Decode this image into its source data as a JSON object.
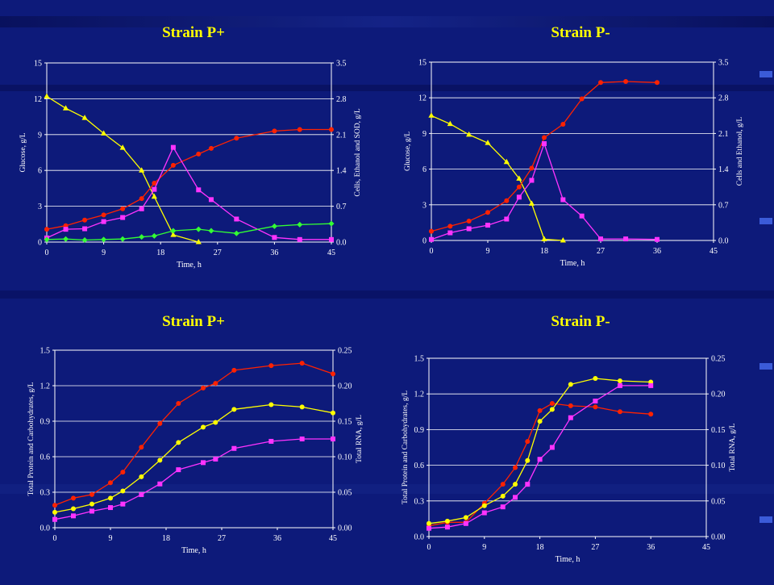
{
  "colors": {
    "background": "#0d1a7a",
    "title": "#ffff00",
    "axis": "#ffffff",
    "red": "#ff2200",
    "magenta": "#ff33ff",
    "yellow": "#ffff00",
    "green": "#33ff33"
  },
  "chart_data": [
    {
      "type": "line",
      "title": "Strain P+",
      "xlabel": "Time, h",
      "ylabel": "Glucose, g/L",
      "y2label": "Cells, Ethanol and SOD, g/L",
      "xlim": [
        0,
        45
      ],
      "ylim": [
        0,
        15
      ],
      "y2lim": [
        0,
        3.5
      ],
      "xticks": [
        "0",
        "9",
        "18",
        "27",
        "36",
        "45"
      ],
      "yticks": [
        "0",
        "3",
        "6",
        "9",
        "12",
        "15"
      ],
      "y2ticks": [
        "0.0",
        "0.7",
        "1.4",
        "2.1",
        "2.8",
        "3.5"
      ],
      "grid": true,
      "series": [
        {
          "axis": "y",
          "color": "#ffff00",
          "marker": "triangle",
          "x": [
            0,
            3,
            6,
            9,
            12,
            15,
            17,
            20,
            24
          ],
          "y": [
            12.2,
            11.2,
            10.4,
            9.1,
            7.9,
            6.0,
            3.8,
            0.6,
            0.0
          ]
        },
        {
          "axis": "y2",
          "color": "#ff2200",
          "marker": "circle",
          "x": [
            0,
            3,
            6,
            9,
            12,
            15,
            17,
            20,
            24,
            26,
            30,
            36,
            40,
            45
          ],
          "y": [
            0.25,
            0.32,
            0.43,
            0.53,
            0.65,
            0.85,
            1.15,
            1.5,
            1.72,
            1.83,
            2.03,
            2.17,
            2.2,
            2.2
          ]
        },
        {
          "axis": "y2",
          "color": "#ff33ff",
          "marker": "square",
          "x": [
            0,
            3,
            6,
            9,
            12,
            15,
            17,
            20,
            24,
            26,
            30,
            36,
            40,
            45
          ],
          "y": [
            0.08,
            0.25,
            0.26,
            0.4,
            0.48,
            0.65,
            1.03,
            1.85,
            1.02,
            0.83,
            0.45,
            0.09,
            0.05,
            0.05
          ]
        },
        {
          "axis": "y2",
          "color": "#33ff33",
          "marker": "diamond",
          "x": [
            0,
            3,
            6,
            9,
            12,
            15,
            17,
            20,
            24,
            26,
            30,
            36,
            40,
            45
          ],
          "y": [
            0.05,
            0.06,
            0.04,
            0.05,
            0.06,
            0.1,
            0.12,
            0.22,
            0.25,
            0.22,
            0.17,
            0.31,
            0.34,
            0.36
          ]
        }
      ]
    },
    {
      "type": "line",
      "title": "Strain P-",
      "xlabel": "Time, h",
      "ylabel": "Glucose, g/L",
      "y2label": "Cells and Ethanol, g/L",
      "xlim": [
        0,
        45
      ],
      "ylim": [
        0,
        15
      ],
      "y2lim": [
        0,
        3.5
      ],
      "xticks": [
        "0",
        "9",
        "18",
        "27",
        "36",
        "45"
      ],
      "yticks": [
        "0",
        "3",
        "6",
        "9",
        "12",
        "15"
      ],
      "y2ticks": [
        "0.0",
        "0.7",
        "1.4",
        "2.1",
        "2.8",
        "3.5"
      ],
      "grid": true,
      "series": [
        {
          "axis": "y",
          "color": "#ffff00",
          "marker": "triangle",
          "x": [
            0,
            3,
            6,
            9,
            12,
            14,
            16,
            18,
            21
          ],
          "y": [
            10.5,
            9.8,
            8.9,
            8.2,
            6.6,
            5.2,
            3.1,
            0.1,
            0.0
          ]
        },
        {
          "axis": "y2",
          "color": "#ff2200",
          "marker": "circle",
          "x": [
            0,
            3,
            6,
            9,
            12,
            14,
            16,
            18,
            21,
            24,
            27,
            31,
            36
          ],
          "y": [
            0.18,
            0.28,
            0.38,
            0.55,
            0.78,
            1.05,
            1.42,
            2.02,
            2.28,
            2.78,
            3.1,
            3.12,
            3.1
          ]
        },
        {
          "axis": "y2",
          "color": "#ff33ff",
          "marker": "square",
          "x": [
            0,
            3,
            6,
            9,
            12,
            14,
            16,
            18,
            21,
            24,
            27,
            31,
            36
          ],
          "y": [
            0.02,
            0.15,
            0.23,
            0.3,
            0.42,
            0.85,
            1.18,
            1.9,
            0.8,
            0.48,
            0.03,
            0.03,
            0.02
          ]
        }
      ]
    },
    {
      "type": "line",
      "title": "Strain P+",
      "xlabel": "Time, h",
      "ylabel": "Total Protein and Carbohydrates, g/L",
      "y2label": "Total RNA, g/L",
      "xlim": [
        0,
        45
      ],
      "ylim": [
        0,
        1.5
      ],
      "y2lim": [
        0,
        0.25
      ],
      "xticks": [
        "0",
        "9",
        "18",
        "27",
        "36",
        "45"
      ],
      "yticks": [
        "0.0",
        "0.3",
        "0.6",
        "0.9",
        "1.2",
        "1.5"
      ],
      "y2ticks": [
        "0.00",
        "0.05",
        "0.10",
        "0.15",
        "0.20",
        "0.25"
      ],
      "grid": true,
      "series": [
        {
          "axis": "y",
          "color": "#ff2200",
          "marker": "circle",
          "x": [
            0,
            3,
            6,
            9,
            11,
            14,
            17,
            20,
            24,
            26,
            29,
            35,
            40,
            45
          ],
          "y": [
            0.19,
            0.25,
            0.28,
            0.38,
            0.47,
            0.68,
            0.88,
            1.05,
            1.18,
            1.22,
            1.33,
            1.37,
            1.39,
            1.3
          ]
        },
        {
          "axis": "y",
          "color": "#ffff00",
          "marker": "circle",
          "x": [
            0,
            3,
            6,
            9,
            11,
            14,
            17,
            20,
            24,
            26,
            29,
            35,
            40,
            45
          ],
          "y": [
            0.13,
            0.16,
            0.2,
            0.25,
            0.31,
            0.43,
            0.57,
            0.72,
            0.85,
            0.89,
            1.0,
            1.04,
            1.02,
            0.97
          ]
        },
        {
          "axis": "y",
          "color": "#ff33ff",
          "marker": "square",
          "x": [
            0,
            3,
            6,
            9,
            11,
            14,
            17,
            20,
            24,
            26,
            29,
            35,
            40,
            45
          ],
          "y": [
            0.07,
            0.1,
            0.14,
            0.17,
            0.2,
            0.28,
            0.37,
            0.49,
            0.55,
            0.58,
            0.67,
            0.73,
            0.75,
            0.75
          ]
        }
      ]
    },
    {
      "type": "line",
      "title": "Strain P-",
      "xlabel": "Time, h",
      "ylabel": "Total Protein and Carbohydrates, g/L",
      "y2label": "Total RNA, g/L",
      "xlim": [
        0,
        45
      ],
      "ylim": [
        0,
        1.5
      ],
      "y2lim": [
        0,
        0.25
      ],
      "xticks": [
        "0",
        "9",
        "18",
        "27",
        "36",
        "45"
      ],
      "yticks": [
        "0.0",
        "0.3",
        "0.6",
        "0.9",
        "1.2",
        "1.5"
      ],
      "y2ticks": [
        "0.00",
        "0.05",
        "0.10",
        "0.15",
        "0.20",
        "0.25"
      ],
      "grid": true,
      "series": [
        {
          "axis": "y",
          "color": "#ff2200",
          "marker": "circle",
          "x": [
            0,
            3,
            6,
            9,
            12,
            14,
            16,
            18,
            20,
            23,
            27,
            31,
            36
          ],
          "y": [
            0.09,
            0.12,
            0.12,
            0.28,
            0.44,
            0.58,
            0.8,
            1.06,
            1.12,
            1.1,
            1.09,
            1.05,
            1.03
          ]
        },
        {
          "axis": "y",
          "color": "#ffff00",
          "marker": "circle",
          "x": [
            0,
            3,
            6,
            9,
            12,
            14,
            16,
            18,
            20,
            23,
            27,
            31,
            36
          ],
          "y": [
            0.11,
            0.13,
            0.16,
            0.26,
            0.34,
            0.44,
            0.64,
            0.97,
            1.07,
            1.28,
            1.33,
            1.31,
            1.3
          ]
        },
        {
          "axis": "y",
          "color": "#ff33ff",
          "marker": "square",
          "x": [
            0,
            3,
            6,
            9,
            12,
            14,
            16,
            18,
            20,
            23,
            27,
            31,
            36
          ],
          "y": [
            0.07,
            0.08,
            0.11,
            0.2,
            0.25,
            0.33,
            0.44,
            0.65,
            0.75,
            1.0,
            1.14,
            1.27,
            1.27
          ]
        }
      ]
    }
  ]
}
